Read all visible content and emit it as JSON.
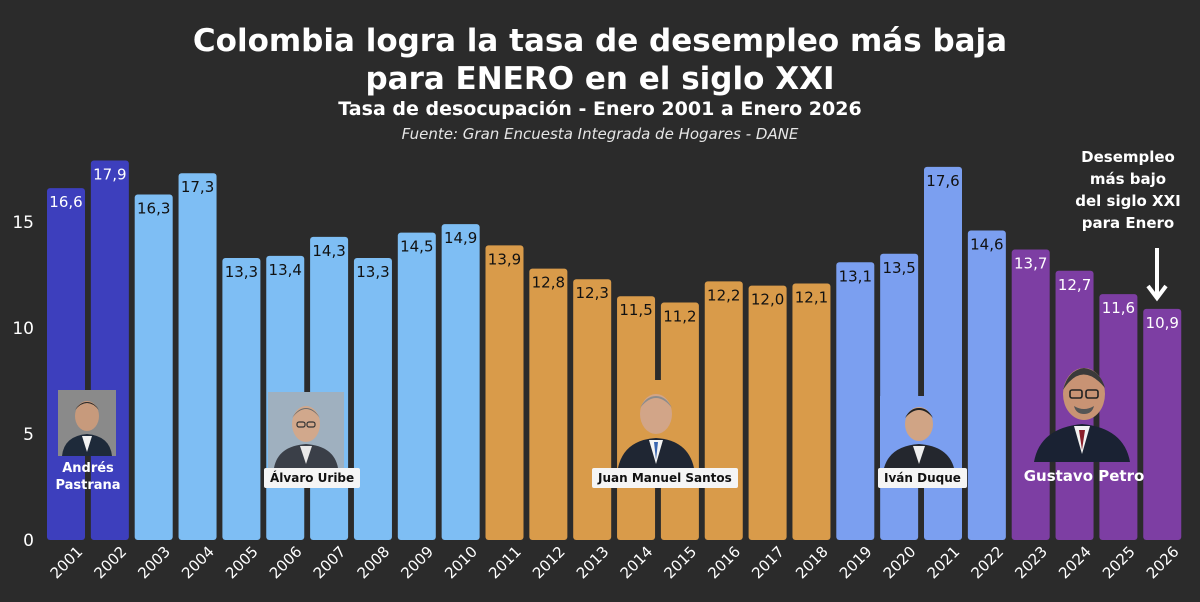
{
  "title_line1": "Colombia logra la tasa de desempleo más baja",
  "title_line2": "para ENERO en el siglo XXI",
  "subtitle": "Tasa de desocupación - Enero 2001 a Enero 2026",
  "source": "Fuente: Gran Encuesta Integrada de Hogares - DANE",
  "annotation": {
    "line1": "Desempleo",
    "line2": "más bajo",
    "line3": "del siglo XXI",
    "line4": "para Enero"
  },
  "presidents": {
    "pastrana_line1": "Andrés",
    "pastrana_line2": "Pastrana",
    "uribe": "Álvaro Uribe",
    "santos": "Juan Manuel Santos",
    "duque": "Iván Duque",
    "petro": "Gustavo Petro"
  },
  "colors": {
    "pastrana": "#3d3fbd",
    "uribe": "#7ebef4",
    "santos": "#d99b4a",
    "duque": "#7b9ff0",
    "petro": "#7d3ea3",
    "background": "#2b2b2b"
  },
  "chart_data": {
    "type": "bar",
    "title": "Colombia logra la tasa de desempleo más baja para ENERO en el siglo XXI",
    "subtitle": "Tasa de desocupación - Enero 2001 a Enero 2026",
    "xlabel": "",
    "ylabel": "",
    "ylim": [
      0,
      20
    ],
    "yticks": [
      "0",
      "5",
      "10",
      "15"
    ],
    "grid": false,
    "categories": [
      "2001",
      "2002",
      "2003",
      "2004",
      "2005",
      "2006",
      "2007",
      "2008",
      "2009",
      "2010",
      "2011",
      "2012",
      "2013",
      "2014",
      "2015",
      "2016",
      "2017",
      "2018",
      "2019",
      "2020",
      "2021",
      "2022",
      "2023",
      "2024",
      "2025",
      "2026"
    ],
    "values": [
      16.6,
      17.9,
      16.3,
      17.3,
      13.3,
      13.4,
      14.3,
      13.3,
      14.5,
      14.9,
      13.9,
      12.8,
      12.3,
      11.5,
      11.2,
      12.2,
      12.0,
      12.1,
      13.1,
      13.5,
      17.6,
      14.6,
      13.7,
      12.7,
      11.6,
      10.9
    ],
    "labels": [
      "16,6",
      "17,9",
      "16,3",
      "17,3",
      "13,3",
      "13,4",
      "14,3",
      "13,3",
      "14,5",
      "14,9",
      "13,9",
      "12,8",
      "12,3",
      "11,5",
      "11,2",
      "12,2",
      "12,0",
      "12,1",
      "13,1",
      "13,5",
      "17,6",
      "14,6",
      "13,7",
      "12,7",
      "11,6",
      "10,9"
    ],
    "groups": [
      "pastrana",
      "pastrana",
      "uribe",
      "uribe",
      "uribe",
      "uribe",
      "uribe",
      "uribe",
      "uribe",
      "uribe",
      "santos",
      "santos",
      "santos",
      "santos",
      "santos",
      "santos",
      "santos",
      "santos",
      "duque",
      "duque",
      "duque",
      "duque",
      "petro",
      "petro",
      "petro",
      "petro"
    ]
  }
}
